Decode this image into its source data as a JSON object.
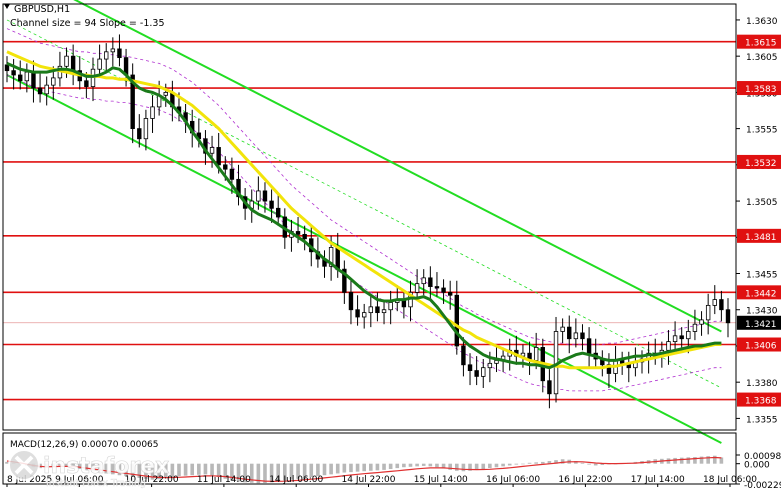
{
  "header": {
    "symbol": "GBPUSD,H1",
    "channel_note": "Channel size = 94 Slope = -1.35"
  },
  "macd": {
    "label": "MACD(12,26,9) 0.00070 0.00065",
    "ticks": [
      {
        "label": "0.00098",
        "value": 0.00098
      },
      {
        "label": "0.000",
        "value": 0.0
      },
      {
        "label": "-0.00229",
        "value": -0.00229
      }
    ]
  },
  "watermark": {
    "brand": "instaforex",
    "tagline": "Instant Forex Trading"
  },
  "chart_data": {
    "type": "candlestick",
    "title": "GBPUSD,H1",
    "y_ticks": [
      "1.3630",
      "1.3605",
      "1.3580",
      "1.3555",
      "1.3530",
      "1.3505",
      "1.3480",
      "1.3455",
      "1.3430",
      "1.3405",
      "1.3380",
      "1.3355"
    ],
    "ylim": [
      1.3347,
      1.3641
    ],
    "x_ticks": [
      "8 Jul 2025",
      "9 Jul 06:00",
      "10 Jul 22:00",
      "11 Jul 14:00",
      "14 Jul 06:00",
      "14 Jul 22:00",
      "15 Jul 14:00",
      "16 Jul 06:00",
      "16 Jul 22:00",
      "17 Jul 14:00",
      "18 Jul 06:00"
    ],
    "current_price": {
      "label": "1.3421",
      "value": 1.3421
    },
    "levels": [
      {
        "label": "1.3615",
        "value": 1.3615
      },
      {
        "label": "1.3583",
        "value": 1.3583
      },
      {
        "label": "1.3532",
        "value": 1.3532
      },
      {
        "label": "1.3481",
        "value": 1.3481
      },
      {
        "label": "1.3442",
        "value": 1.3442
      },
      {
        "label": "1.3406",
        "value": 1.3406
      },
      {
        "label": "1.3368",
        "value": 1.3368
      }
    ],
    "colors": {
      "levels": "#e01010",
      "channel": "#22dd22",
      "ma_fast": "#1a7a1a",
      "ma_slow": "#f2e40a",
      "envelope": "#b030d0",
      "macd_hist": "#b8b8b8",
      "macd_signal": "#e03030"
    },
    "channel": {
      "upper": [
        [
          0,
          1.3668
        ],
        [
          108,
          1.3415
        ]
      ],
      "lower": [
        [
          0,
          1.3592
        ],
        [
          108,
          1.3338
        ]
      ],
      "middle": [
        [
          0,
          1.363
        ],
        [
          108,
          1.3376
        ]
      ]
    },
    "candles_close": [
      1.3595,
      1.3592,
      1.3588,
      1.3594,
      1.3583,
      1.3579,
      1.3585,
      1.359,
      1.3598,
      1.3605,
      1.3595,
      1.3588,
      1.3584,
      1.3596,
      1.3603,
      1.3608,
      1.361,
      1.3604,
      1.3592,
      1.3555,
      1.3548,
      1.3562,
      1.357,
      1.3578,
      1.358,
      1.357,
      1.3566,
      1.356,
      1.3552,
      1.3548,
      1.3538,
      1.3542,
      1.353,
      1.3527,
      1.352,
      1.3508,
      1.35,
      1.3505,
      1.3512,
      1.3505,
      1.35,
      1.3494,
      1.348,
      1.3484,
      1.3482,
      1.3479,
      1.347,
      1.3465,
      1.346,
      1.3473,
      1.3458,
      1.3442,
      1.343,
      1.3425,
      1.3428,
      1.3432,
      1.3428,
      1.343,
      1.3435,
      1.3437,
      1.3432,
      1.3442,
      1.3448,
      1.3452,
      1.3446,
      1.3445,
      1.3442,
      1.344,
      1.3405,
      1.3392,
      1.3388,
      1.3384,
      1.339,
      1.3393,
      1.3395,
      1.3398,
      1.3402,
      1.3398,
      1.34,
      1.3395,
      1.3404,
      1.3381,
      1.3372,
      1.3415,
      1.3418,
      1.341,
      1.3414,
      1.341,
      1.34,
      1.3396,
      1.3392,
      1.3386,
      1.3395,
      1.3393,
      1.339,
      1.3394,
      1.3396,
      1.34,
      1.3398,
      1.3402,
      1.3408,
      1.3412,
      1.341,
      1.3415,
      1.342,
      1.3423,
      1.3433,
      1.3437,
      1.343,
      1.3421
    ],
    "ma_fast": [
      1.36,
      1.3598,
      1.3596,
      1.3595,
      1.3594,
      1.3594,
      1.3594,
      1.3595,
      1.3596,
      1.3596,
      1.3595,
      1.3593,
      1.3591,
      1.3591,
      1.3592,
      1.3594,
      1.3597,
      1.3596,
      1.3592,
      1.3587,
      1.3583,
      1.3581,
      1.358,
      1.3578,
      1.3575,
      1.3571,
      1.3566,
      1.356,
      1.3553,
      1.3547,
      1.354,
      1.3534,
      1.3528,
      1.3522,
      1.3516,
      1.351,
      1.3504,
      1.3499,
      1.3496,
      1.3494,
      1.3492,
      1.3489,
      1.3486,
      1.3483,
      1.348,
      1.3477,
      1.3473,
      1.3469,
      1.3465,
      1.3462,
      1.3458,
      1.3455,
      1.3451,
      1.3447,
      1.3443,
      1.344,
      1.3437,
      1.3436,
      1.3436,
      1.3437,
      1.3437,
      1.3438,
      1.3438,
      1.3439,
      1.3437,
      1.3432,
      1.3426,
      1.342,
      1.3414,
      1.3409,
      1.3405,
      1.3402,
      1.3399,
      1.3397,
      1.3396,
      1.3395,
      1.3394,
      1.3393,
      1.3393,
      1.3392,
      1.3392,
      1.3391,
      1.339,
      1.3392,
      1.3395,
      1.3397,
      1.3399,
      1.34,
      1.3399,
      1.3398,
      1.3396,
      1.3395,
      1.3395,
      1.3396,
      1.3397,
      1.3398,
      1.3398,
      1.3399,
      1.3399,
      1.34,
      1.3401,
      1.3402,
      1.3403,
      1.3404,
      1.3405,
      1.3405,
      1.3406,
      1.3407,
      1.3407
    ],
    "ma_slow": [
      1.3608,
      1.3606,
      1.3604,
      1.3602,
      1.36,
      1.3598,
      1.3597,
      1.3596,
      1.3595,
      1.3594,
      1.3593,
      1.3592,
      1.3592,
      1.3591,
      1.3591,
      1.359,
      1.359,
      1.3589,
      1.3589,
      1.3588,
      1.3587,
      1.3586,
      1.3585,
      1.3584,
      1.3582,
      1.358,
      1.3577,
      1.3574,
      1.3571,
      1.3567,
      1.3563,
      1.3559,
      1.3555,
      1.355,
      1.3545,
      1.354,
      1.3535,
      1.353,
      1.3525,
      1.352,
      1.3515,
      1.351,
      1.3505,
      1.35,
      1.3496,
      1.3492,
      1.3488,
      1.3484,
      1.348,
      1.3476,
      1.3473,
      1.347,
      1.3467,
      1.3464,
      1.3461,
      1.3458,
      1.3455,
      1.3452,
      1.3449,
      1.3446,
      1.3443,
      1.344,
      1.3437,
      1.3434,
      1.3431,
      1.3428,
      1.3425,
      1.3422,
      1.3419,
      1.3416,
      1.3414,
      1.3411,
      1.3409,
      1.3407,
      1.3405,
      1.3403,
      1.3401,
      1.3399,
      1.3397,
      1.3395,
      1.3394,
      1.3393,
      1.3392,
      1.3391,
      1.3391,
      1.339,
      1.339,
      1.339,
      1.339,
      1.339,
      1.339,
      1.3391,
      1.3391,
      1.3392,
      1.3393,
      1.3394,
      1.3395,
      1.3396,
      1.3397,
      1.3398,
      1.3399,
      1.34,
      1.3401,
      1.3402,
      1.3403,
      1.3404,
      1.3405,
      1.3406,
      1.3406
    ],
    "macd_hist": [
      0.0002,
      0.0001,
      0.0,
      -0.0002,
      -0.0004,
      -0.0005,
      -0.00045,
      -0.0003,
      -0.0002,
      -0.00025,
      -0.0004,
      -0.0006,
      -0.0008,
      -0.0009,
      -0.001,
      -0.0011,
      -0.0012,
      -0.0013,
      -0.0014,
      -0.0015,
      -0.0016,
      -0.0017,
      -0.0018,
      -0.00175,
      -0.0016,
      -0.0015,
      -0.0014,
      -0.00135,
      -0.0013,
      -0.00125,
      -0.0012,
      -0.0013,
      -0.0015,
      -0.0017,
      -0.0019,
      -0.002,
      -0.0021,
      -0.00215,
      -0.0022,
      -0.00218,
      -0.0021,
      -0.002,
      -0.0019,
      -0.0018,
      -0.0017,
      -0.0016,
      -0.0015,
      -0.0014,
      -0.0013,
      -0.0012,
      -0.0011,
      -0.001,
      -0.00095,
      -0.0009,
      -0.00085,
      -0.0008,
      -0.00075,
      -0.0007,
      -0.0006,
      -0.0005,
      -0.0004,
      -0.00035,
      -0.0003,
      -0.00025,
      -0.0003,
      -0.0004,
      -0.00055,
      -0.0007,
      -0.0008,
      -0.00085,
      -0.0008,
      -0.0007,
      -0.0006,
      -0.0005,
      -0.0004,
      -0.0003,
      -0.0002,
      -0.0001,
      0.0,
      0.0001,
      0.00015,
      0.0002,
      0.0003,
      0.0004,
      0.0005,
      0.00045,
      0.0003,
      0.0001,
      -0.0001,
      -0.0002,
      -0.00015,
      -5e-05,
      0.0,
      5e-05,
      0.0001,
      0.0002,
      0.0003,
      0.0004,
      0.0005,
      0.00055,
      0.0006,
      0.00065,
      0.00068,
      0.00072,
      0.00075,
      0.0008,
      0.00085,
      0.0009,
      0.0007
    ],
    "macd_signal": [
      0.0003,
      0.0002,
      0.0001,
      -5e-05,
      -0.0002,
      -0.0003,
      -0.00035,
      -0.00033,
      -0.0003,
      -0.0003,
      -0.00033,
      -0.0004,
      -0.0005,
      -0.0006,
      -0.0007,
      -0.0008,
      -0.0009,
      -0.001,
      -0.0011,
      -0.0012,
      -0.0013,
      -0.0014,
      -0.0015,
      -0.00155,
      -0.00157,
      -0.00156,
      -0.00153,
      -0.0015,
      -0.00146,
      -0.00142,
      -0.00138,
      -0.00137,
      -0.0014,
      -0.00145,
      -0.00155,
      -0.00165,
      -0.00175,
      -0.00183,
      -0.0019,
      -0.00196,
      -0.00199,
      -0.00199,
      -0.00197,
      -0.00193,
      -0.00188,
      -0.00182,
      -0.00175,
      -0.00168,
      -0.0016,
      -0.00152,
      -0.00144,
      -0.00135,
      -0.00127,
      -0.0012,
      -0.00113,
      -0.00106,
      -0.001,
      -0.00094,
      -0.00087,
      -0.0008,
      -0.00072,
      -0.00065,
      -0.00058,
      -0.00052,
      -0.00047,
      -0.00046,
      -0.00048,
      -0.00052,
      -0.00058,
      -0.00063,
      -0.00066,
      -0.00067,
      -0.00066,
      -0.00063,
      -0.00058,
      -0.00053,
      -0.00046,
      -0.00039,
      -0.00031,
      -0.00023,
      -0.00015,
      -8e-05,
      -1e-05,
      7e-05,
      0.00015,
      0.00021,
      0.00023,
      0.00021,
      0.00015,
      8e-05,
      3e-05,
      1e-05,
      1e-05,
      2e-05,
      4e-05,
      7e-05,
      0.00012,
      0.00018,
      0.00024,
      0.0003,
      0.00036,
      0.00042,
      0.00047,
      0.00052,
      0.00057,
      0.00062,
      0.00066,
      0.0007,
      0.00065
    ]
  }
}
